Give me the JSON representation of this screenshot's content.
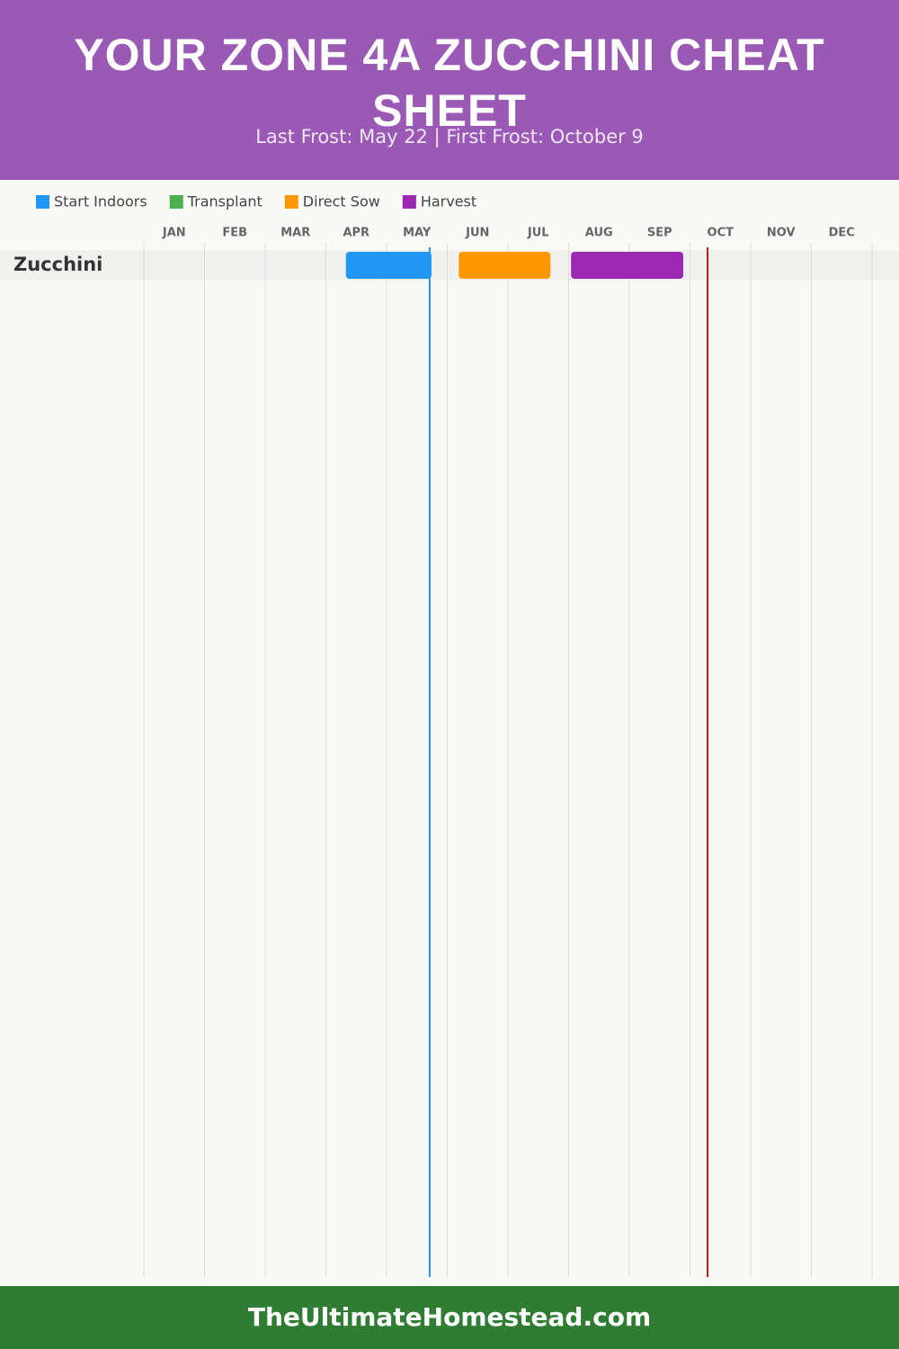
{
  "chart_data": {
    "type": "gantt",
    "title": "YOUR ZONE 4A ZUCCHINI CHEAT SHEET",
    "subtitle": "Last Frost: May 22 | First Frost: October 9",
    "categories": [
      "JAN",
      "FEB",
      "MAR",
      "APR",
      "MAY",
      "JUN",
      "JUL",
      "AUG",
      "SEP",
      "OCT",
      "NOV",
      "DEC"
    ],
    "xlim": [
      0,
      12
    ],
    "xticks": [
      0,
      1,
      2,
      3,
      4,
      5,
      6,
      7,
      8,
      9,
      10,
      11,
      12
    ],
    "grid": true,
    "rows": [
      "Zucchini"
    ],
    "series": [
      {
        "name": "Start Indoors",
        "color": "#2196f3",
        "start": [
          3.33
        ],
        "end": [
          4.74
        ]
      },
      {
        "name": "Transplant",
        "color": "#4caf50",
        "start": [
          null
        ],
        "end": [
          null
        ]
      },
      {
        "name": "Direct Sow",
        "color": "#ff9800",
        "start": [
          5.19
        ],
        "end": [
          6.7
        ]
      },
      {
        "name": "Harvest",
        "color": "#9c27b0",
        "start": [
          7.04
        ],
        "end": [
          8.89
        ]
      }
    ],
    "markers": [
      {
        "value": 4.71,
        "color": "#2196f3"
      },
      {
        "value": 9.29,
        "color": "#b71c1c"
      }
    ]
  },
  "footer": "TheUltimateHomestead.com"
}
